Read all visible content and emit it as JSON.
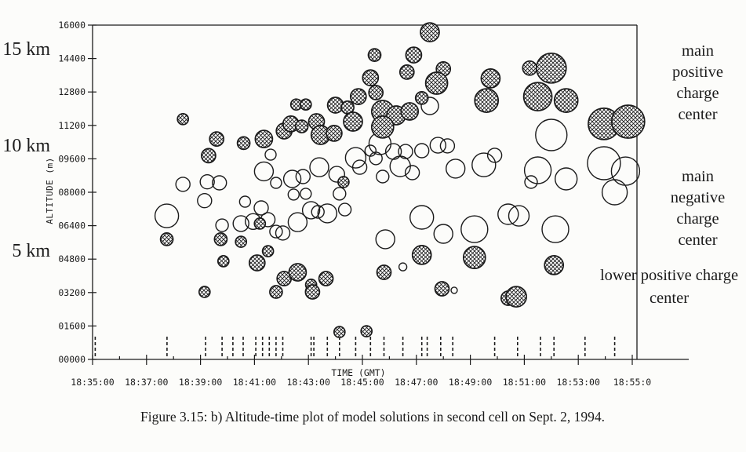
{
  "figure": {
    "caption": "Figure 3.15: b) Altitude-time plot of model solutions in second cell on Sept. 2, 1994.",
    "ink_color": "#1b1b1b",
    "bg_color": "#fcfcfa"
  },
  "chart_data": {
    "type": "scatter",
    "title": "",
    "xlabel": "TIME (GMT)",
    "ylabel": "ALTITUDE (m)",
    "grid": false,
    "ylim": [
      0,
      16000
    ],
    "x_start_time": "18:35:00",
    "x_end_time": "18:55:00",
    "x_tick_labels": [
      "18:35:00",
      "18:37:00",
      "18:39:00",
      "18:41:00",
      "18:43:00",
      "18:45:00",
      "18:47:00",
      "18:49:00",
      "18:51:00",
      "18:53:00",
      "18:55:0"
    ],
    "x_tick_minutes": [
      0,
      2,
      4,
      6,
      8,
      10,
      12,
      14,
      16,
      18,
      20
    ],
    "y_tick_labels": [
      "16000",
      "14400",
      "12800",
      "11200",
      "09600",
      "08000",
      "06400",
      "04800",
      "03200",
      "01600",
      "00000"
    ],
    "y_tick_values": [
      16000,
      14400,
      12800,
      11200,
      9600,
      8000,
      6400,
      4800,
      3200,
      1600,
      0
    ],
    "km_labels": [
      {
        "text": "15 km",
        "alt": 15000
      },
      {
        "text": "10 km",
        "alt": 10000
      },
      {
        "text": "5 km",
        "alt": 5000
      }
    ],
    "annotations_text": {
      "main_positive": "main\npositive charge\ncenter",
      "main_negative": "main\nnegative charge\ncenter",
      "lower_positive": "lower positive charge\ncenter"
    },
    "series": [
      {
        "name": "positive charge region (cross-hatched circle)",
        "polarity": "positive",
        "marker": "crosshatched-circle",
        "point_format": [
          "minutes_after_18:35",
          "altitude_m",
          "radius_px"
        ],
        "points": [
          [
            3.35,
            11500,
            7
          ],
          [
            4.6,
            10550,
            9
          ],
          [
            4.3,
            9750,
            9
          ],
          [
            5.6,
            10350,
            8
          ],
          [
            2.75,
            5750,
            8
          ],
          [
            4.75,
            5750,
            8
          ],
          [
            4.85,
            4700,
            7
          ],
          [
            4.15,
            3230,
            7
          ],
          [
            6.35,
            10550,
            11
          ],
          [
            7.55,
            12200,
            7
          ],
          [
            7.9,
            12200,
            7
          ],
          [
            7.1,
            10930,
            10
          ],
          [
            7.35,
            11270,
            10
          ],
          [
            7.75,
            11150,
            8
          ],
          [
            8.3,
            11380,
            10
          ],
          [
            8.45,
            10740,
            12
          ],
          [
            8.95,
            10820,
            10
          ],
          [
            9.0,
            12170,
            10
          ],
          [
            9.45,
            12060,
            8
          ],
          [
            9.65,
            11380,
            12
          ],
          [
            9.85,
            12580,
            10
          ],
          [
            10.3,
            13480,
            10
          ],
          [
            10.5,
            12770,
            9
          ],
          [
            9.3,
            8490,
            7
          ],
          [
            6.2,
            6500,
            7
          ],
          [
            5.5,
            5630,
            7
          ],
          [
            6.5,
            5180,
            7
          ],
          [
            6.1,
            4620,
            10
          ],
          [
            7.1,
            3870,
            9
          ],
          [
            7.6,
            4170,
            11
          ],
          [
            6.8,
            3230,
            8
          ],
          [
            8.1,
            3570,
            7
          ],
          [
            8.15,
            3230,
            9
          ],
          [
            8.65,
            3870,
            9
          ],
          [
            9.15,
            1310,
            7
          ],
          [
            10.15,
            1350,
            7
          ],
          [
            12.5,
            15660,
            12
          ],
          [
            10.45,
            14570,
            8
          ],
          [
            11.9,
            14570,
            10
          ],
          [
            11.65,
            13750,
            9
          ],
          [
            13.0,
            13900,
            9
          ],
          [
            12.75,
            13220,
            14
          ],
          [
            14.75,
            13450,
            12
          ],
          [
            14.6,
            12390,
            15
          ],
          [
            10.75,
            11870,
            14
          ],
          [
            11.25,
            11680,
            12
          ],
          [
            11.75,
            11870,
            11
          ],
          [
            10.75,
            11120,
            14
          ],
          [
            12.2,
            12510,
            8
          ],
          [
            16.2,
            13940,
            9
          ],
          [
            17.0,
            13940,
            19
          ],
          [
            16.5,
            12580,
            18
          ],
          [
            17.55,
            12390,
            15
          ],
          [
            18.95,
            11270,
            20
          ],
          [
            19.85,
            11380,
            21
          ],
          [
            12.2,
            5000,
            12
          ],
          [
            14.15,
            4880,
            14
          ],
          [
            10.8,
            4170,
            9
          ],
          [
            12.95,
            3380,
            9
          ],
          [
            15.4,
            2930,
            9
          ],
          [
            17.1,
            4510,
            12
          ],
          [
            15.7,
            3000,
            13
          ]
        ]
      },
      {
        "name": "negative charge region (open circle)",
        "polarity": "negative",
        "marker": "open-circle",
        "point_format": [
          "minutes_after_18:35",
          "altitude_m",
          "radius_px"
        ],
        "points": [
          [
            3.35,
            8380,
            9
          ],
          [
            4.25,
            8500,
            9
          ],
          [
            4.7,
            8450,
            9
          ],
          [
            4.15,
            7600,
            9
          ],
          [
            2.75,
            6870,
            15
          ],
          [
            4.8,
            6420,
            8
          ],
          [
            6.6,
            9800,
            7
          ],
          [
            6.35,
            9000,
            12
          ],
          [
            6.8,
            8450,
            7
          ],
          [
            7.4,
            8640,
            11
          ],
          [
            7.8,
            8750,
            9
          ],
          [
            8.4,
            9200,
            12
          ],
          [
            9.05,
            8860,
            10
          ],
          [
            9.75,
            9650,
            13
          ],
          [
            9.9,
            9200,
            9
          ],
          [
            5.65,
            7550,
            7
          ],
          [
            6.25,
            7250,
            9
          ],
          [
            5.5,
            6500,
            10
          ],
          [
            5.95,
            6600,
            10
          ],
          [
            6.5,
            6690,
            9
          ],
          [
            6.8,
            6120,
            8
          ],
          [
            7.05,
            6050,
            9
          ],
          [
            7.6,
            6570,
            12
          ],
          [
            8.1,
            7140,
            11
          ],
          [
            8.35,
            7060,
            8
          ],
          [
            8.7,
            6990,
            12
          ],
          [
            9.35,
            7170,
            8
          ],
          [
            7.45,
            7890,
            7
          ],
          [
            7.9,
            7930,
            7
          ],
          [
            9.15,
            7930,
            8
          ],
          [
            12.5,
            12130,
            11
          ],
          [
            10.65,
            10330,
            14
          ],
          [
            11.15,
            9950,
            10
          ],
          [
            11.6,
            9950,
            9
          ],
          [
            12.2,
            9990,
            9
          ],
          [
            12.8,
            10250,
            10
          ],
          [
            13.15,
            10220,
            9
          ],
          [
            10.5,
            9620,
            8
          ],
          [
            11.4,
            9240,
            13
          ],
          [
            11.85,
            8940,
            9
          ],
          [
            10.75,
            8750,
            8
          ],
          [
            13.45,
            9130,
            12
          ],
          [
            14.5,
            9310,
            15
          ],
          [
            14.9,
            9770,
            9
          ],
          [
            10.3,
            9990,
            7
          ],
          [
            17.0,
            10740,
            20
          ],
          [
            16.5,
            9050,
            17
          ],
          [
            17.55,
            8640,
            14
          ],
          [
            18.95,
            9390,
            21
          ],
          [
            19.75,
            9010,
            18
          ],
          [
            19.35,
            8000,
            16
          ],
          [
            16.25,
            8490,
            8
          ],
          [
            12.2,
            6800,
            15
          ],
          [
            10.85,
            5750,
            12
          ],
          [
            13.0,
            6010,
            12
          ],
          [
            14.15,
            6230,
            17
          ],
          [
            15.4,
            6950,
            13
          ],
          [
            11.5,
            4430,
            5
          ],
          [
            13.4,
            3310,
            4
          ],
          [
            15.8,
            6870,
            13
          ],
          [
            17.15,
            6230,
            17
          ]
        ]
      }
    ],
    "lightning_dash_minutes": [
      0.1,
      2.76,
      4.19,
      4.8,
      5.2,
      5.58,
      6.05,
      6.3,
      6.55,
      6.8,
      7.05,
      8.1,
      8.2,
      8.7,
      9.15,
      9.75,
      10.3,
      10.8,
      11.5,
      12.2,
      12.4,
      12.9,
      13.35,
      14.9,
      15.75,
      16.6,
      17.1,
      18.25,
      19.35
    ]
  }
}
